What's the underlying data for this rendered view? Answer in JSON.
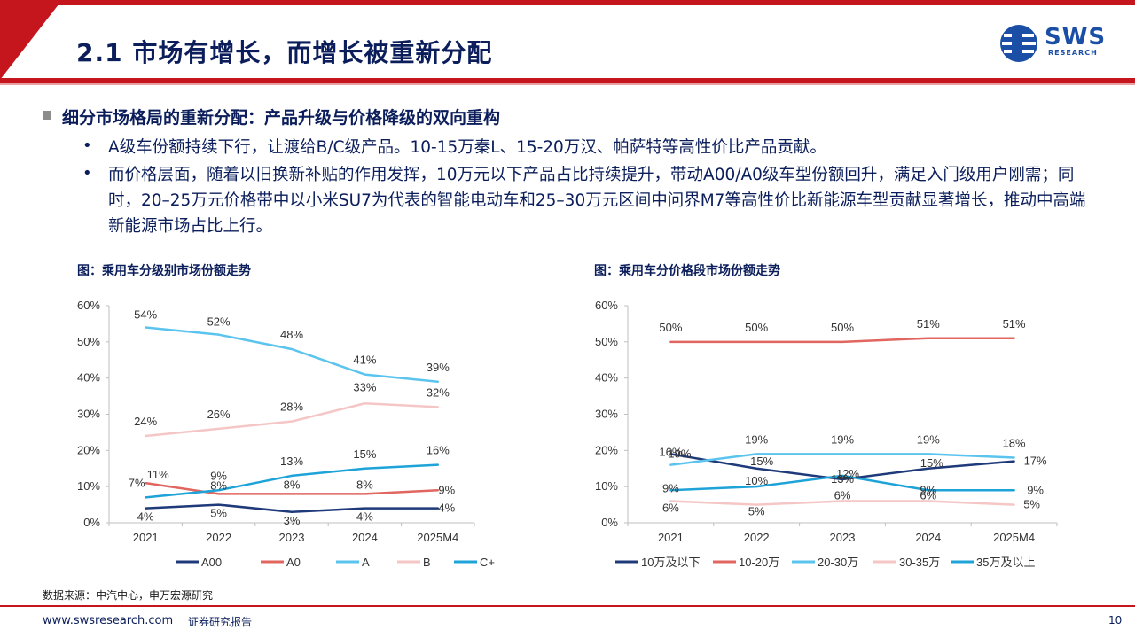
{
  "header": {
    "title": "2.1 市场有增长，而增长被重新分配",
    "logo_text": "SWS",
    "logo_sub": "RESEARCH"
  },
  "section": {
    "title": "细分市场格局的重新分配：产品升级与价格降级的双向重构",
    "bullets": [
      "A级车份额持续下行，让渡给B/C级产品。10-15万秦L、15-20万汉、帕萨特等高性价比产品贡献。",
      "而价格层面，随着以旧换新补贴的作用发挥，10万元以下产品占比持续提升，带动A00/A0级车型份额回升，满足入门级用户刚需；同时，20–25万元价格带中以小米SU7为代表的智能电动车和25–30万元区间中问界M7等高性价比新能源车型贡献显著增长，推动中高端新能源市场占比上行。"
    ]
  },
  "chart_data": [
    {
      "type": "line",
      "title": "图：乘用车分级别市场份额走势",
      "categories": [
        "2021",
        "2022",
        "2023",
        "2024",
        "2025M4"
      ],
      "yticks": [
        "0%",
        "10%",
        "20%",
        "30%",
        "40%",
        "50%",
        "60%"
      ],
      "ylim": [
        0,
        60
      ],
      "grid": false,
      "legend_position": "bottom",
      "series": [
        {
          "name": "A00",
          "color": "#1f3a7a",
          "values": [
            4,
            5,
            3,
            4,
            4
          ],
          "labels": [
            "4%",
            "5%",
            "3%",
            "4%",
            "4%"
          ]
        },
        {
          "name": "A0",
          "color": "#e0665f",
          "values": [
            11,
            8,
            8,
            8,
            9
          ],
          "labels": [
            "11%",
            "8%",
            "8%",
            "8%",
            "9%"
          ]
        },
        {
          "name": "A",
          "color": "#5bc4ee",
          "values": [
            54,
            52,
            48,
            41,
            39
          ],
          "labels": [
            "54%",
            "52%",
            "48%",
            "41%",
            "39%"
          ]
        },
        {
          "name": "B",
          "color": "#f5c6c6",
          "values": [
            24,
            26,
            28,
            33,
            32
          ],
          "labels": [
            "24%",
            "26%",
            "28%",
            "33%",
            "32%"
          ]
        },
        {
          "name": "C+",
          "color": "#1ea3d8",
          "values": [
            7,
            9,
            13,
            15,
            16
          ],
          "labels": [
            "7%",
            "9%",
            "13%",
            "15%",
            "16%"
          ]
        }
      ]
    },
    {
      "type": "line",
      "title": "图：乘用车分价格段市场份额走势",
      "categories": [
        "2021",
        "2022",
        "2023",
        "2024",
        "2025M4"
      ],
      "yticks": [
        "0%",
        "10%",
        "20%",
        "30%",
        "40%",
        "50%",
        "60%"
      ],
      "ylim": [
        0,
        60
      ],
      "grid": false,
      "legend_position": "bottom",
      "series": [
        {
          "name": "10万及以下",
          "color": "#1f3a7a",
          "values": [
            19,
            15,
            12,
            15,
            17
          ],
          "labels": [
            "19%",
            "15%",
            "12%",
            "15%",
            "17%"
          ]
        },
        {
          "name": "10-20万",
          "color": "#e0665f",
          "values": [
            50,
            50,
            50,
            51,
            51
          ],
          "labels": [
            "50%",
            "50%",
            "50%",
            "51%",
            "51%"
          ]
        },
        {
          "name": "20-30万",
          "color": "#5bc4ee",
          "values": [
            16,
            19,
            19,
            19,
            18
          ],
          "labels": [
            "16%",
            "19%",
            "19%",
            "19%",
            "18%"
          ]
        },
        {
          "name": "30-35万",
          "color": "#f5c6c6",
          "values": [
            6,
            5,
            6,
            6,
            5
          ],
          "labels": [
            "6%",
            "5%",
            "6%",
            "6%",
            "5%"
          ]
        },
        {
          "name": "35万及以上",
          "color": "#1ea3d8",
          "values": [
            9,
            10,
            13,
            9,
            9
          ],
          "labels": [
            "9%",
            "10%",
            "13%",
            "9%",
            "9%"
          ]
        }
      ]
    }
  ],
  "footer": {
    "source": "数据来源：中汽中心，申万宏源研究",
    "url": "www.swsresearch.com",
    "label": "证券研究报告",
    "page": "10"
  }
}
